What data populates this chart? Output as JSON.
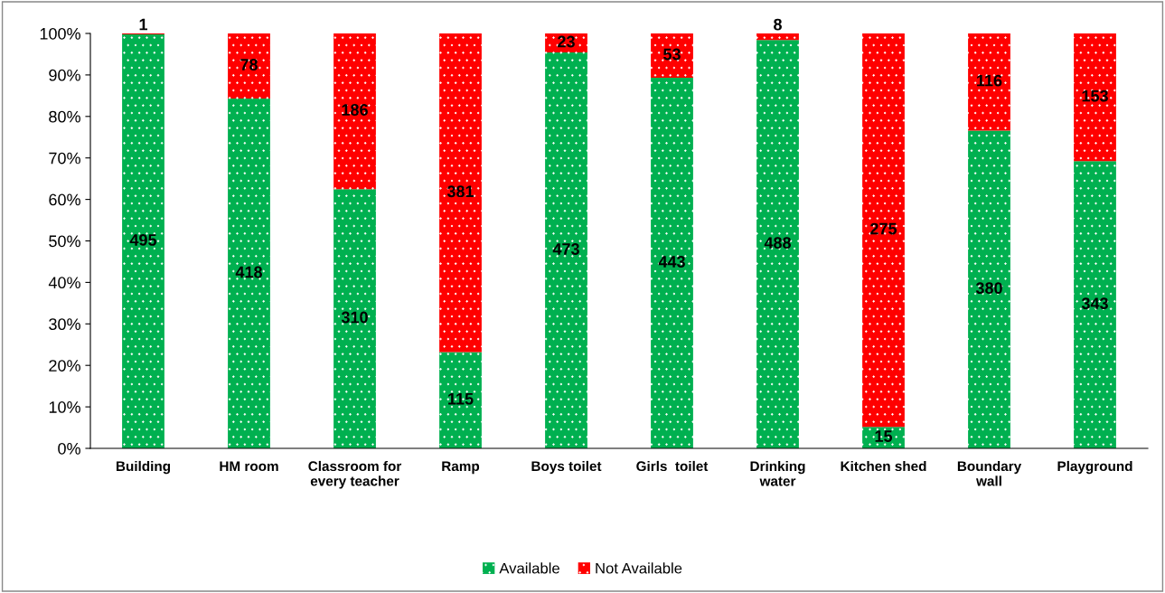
{
  "chart_data": {
    "type": "bar",
    "stacked": true,
    "categories": [
      "Building",
      "HM room",
      "Classroom for\nevery teacher",
      "Ramp",
      "Boys toilet",
      "Girls  toilet",
      "Drinking\nwater",
      "Kitchen shed",
      "Boundary\nwall",
      "Playground"
    ],
    "series": [
      {
        "name": "Available",
        "color": "#00b050",
        "values": [
          99.8,
          84.3,
          62.5,
          23.2,
          95.4,
          89.3,
          98.4,
          5.2,
          76.6,
          69.2
        ]
      },
      {
        "name": "Not Available",
        "color": "#ff0000",
        "values": [
          0.2,
          15.7,
          37.5,
          76.8,
          4.6,
          10.7,
          1.6,
          94.8,
          23.4,
          30.8
        ]
      }
    ],
    "annotations": [
      "495",
      "418",
      "310",
      "115",
      "473",
      "443",
      "488",
      "15",
      "380",
      "343",
      "1",
      "78",
      "186",
      "381",
      "23",
      "53",
      "8",
      "275",
      "116",
      "153"
    ],
    "ylim": [
      0,
      100
    ],
    "yticks": [
      {
        "value": 0,
        "label": "0%"
      },
      {
        "value": 10,
        "label": "10%"
      },
      {
        "value": 20,
        "label": "20%"
      },
      {
        "value": 30,
        "label": "30%"
      },
      {
        "value": 40,
        "label": "40%"
      },
      {
        "value": 50,
        "label": "50%"
      },
      {
        "value": 60,
        "label": "60%"
      },
      {
        "value": 70,
        "label": "70%"
      },
      {
        "value": 80,
        "label": "80%"
      },
      {
        "value": 90,
        "label": "90%"
      },
      {
        "value": 100,
        "label": "100%"
      }
    ],
    "legend": "bottom",
    "grid": false
  }
}
